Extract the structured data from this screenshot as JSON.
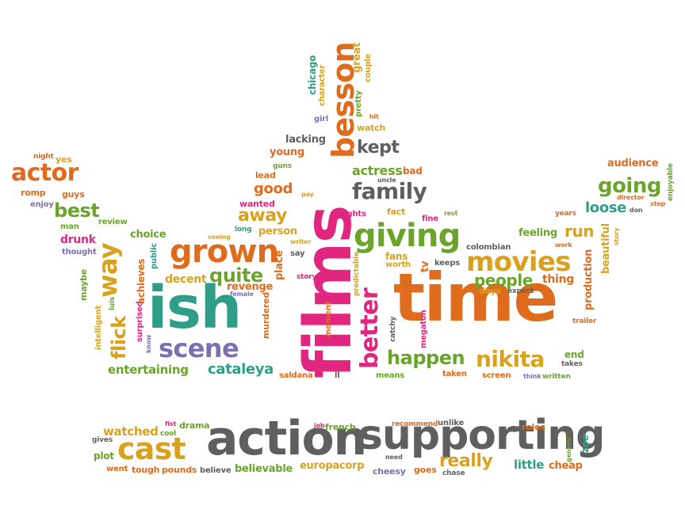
{
  "colors": {
    "pink": "#e0267f",
    "orange": "#df6b1c",
    "gold": "#d9a21e",
    "green": "#6aa52a",
    "teal": "#2e9e88",
    "gray": "#5f5f5f",
    "purple": "#7d6fb0"
  },
  "words": {
    "time": "time",
    "ish": "ish",
    "films": "films",
    "action": "action",
    "supporting": "supporting",
    "besson": "besson",
    "giving": "giving",
    "grown": "grown",
    "movies": "movies",
    "scene": "scene",
    "cast": "cast",
    "family": "family",
    "better": "better",
    "nikita": "nikita",
    "happen": "happen",
    "actor": "actor",
    "way": "way",
    "going": "going",
    "quite": "quite",
    "best": "best",
    "kept": "kept",
    "flick": "flick",
    "cataleya": "cataleya",
    "entertaining": "entertaining",
    "really": "really",
    "people": "people",
    "away": "away",
    "run": "run",
    "loose": "loose",
    "feeling": "feeling",
    "thing": "thing",
    "decent": "decent",
    "good": "good",
    "actress": "actress",
    "revenge": "revenge",
    "choice": "choice",
    "little": "little",
    "cheap": "cheap",
    "believable": "believable",
    "europacorp": "europacorp",
    "watched": "watched",
    "production": "production",
    "beautiful": "beautiful",
    "person": "person",
    "drunk": "drunk",
    "lacking": "lacking",
    "young": "young",
    "place": "place",
    "audience": "audience",
    "murdered": "murdered",
    "megaton": "megaton",
    "moment": "moment",
    "achieves": "achieves",
    "maybe": "maybe",
    "intelligent": "intelligent",
    "surprised": "surprised",
    "public": "public",
    "chicago": "chicago",
    "character": "character",
    "pretty": "pretty",
    "great": "great",
    "couple": "couple",
    "watch": "watch",
    "girl": "girl",
    "hit": "hit",
    "guns": "guns",
    "lead": "lead",
    "pay": "pay",
    "wanted": "wanted",
    "uncle": "uncle",
    "bad": "bad",
    "fights": "fights",
    "fact": "fact",
    "fine": "fine",
    "rest": "rest",
    "colombian": "colombian",
    "keeps": "keeps",
    "tv": "tv",
    "fans": "fans",
    "worth": "worth",
    "days": "days",
    "expect": "expect",
    "work": "work",
    "years": "years",
    "don": "don",
    "director": "director",
    "step": "step",
    "enjoyable": "enjoyable",
    "story": "story",
    "trailer": "trailer",
    "end": "end",
    "takes": "takes",
    "think": "think",
    "written": "written",
    "screen": "screen",
    "taken": "taken",
    "means": "means",
    "catchy": "catchy",
    "predictable": "predictable",
    "storyline": "storyline",
    "say": "say",
    "writer": "writer",
    "long": "long",
    "seeing": "seeing",
    "female": "female",
    "know": "know",
    "luis": "luis",
    "saldana": "saldana",
    "ll": "ll",
    "night": "night",
    "yes": "yes",
    "romp": "romp",
    "guys": "guys",
    "enjoy": "enjoy",
    "man": "man",
    "review": "review",
    "thought": "thought",
    "fist": "fist",
    "drama": "drama",
    "cool": "cool",
    "gives": "gives",
    "plot": "plot",
    "went": "went",
    "tough": "tough",
    "pounds": "pounds",
    "believe": "believe",
    "job": "job",
    "french": "french",
    "recommend": "recommend",
    "unlike": "unlike",
    "need": "need",
    "cheesy": "cheesy",
    "goes": "goes",
    "chase": "chase",
    "roles": "roles",
    "generic": "generic",
    "zoe": "zoe"
  }
}
